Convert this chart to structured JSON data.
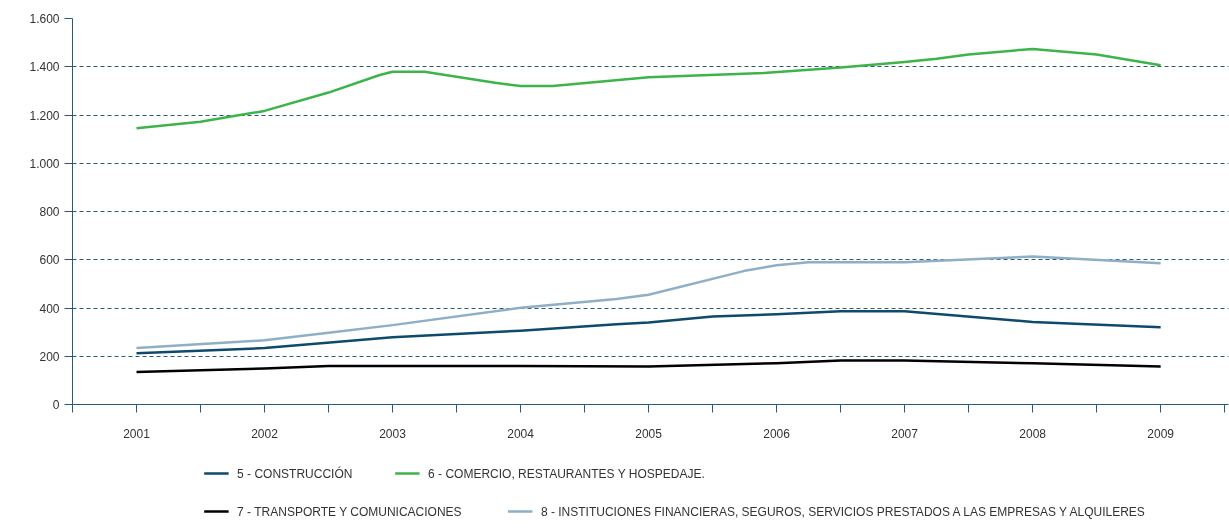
{
  "chart_data": {
    "type": "line",
    "xlim": [
      2000.5,
      2009.53
    ],
    "xticks": [
      {
        "value": 2001,
        "label": "2001"
      },
      {
        "value": 2002,
        "label": "2002"
      },
      {
        "value": 2003,
        "label": "2003"
      },
      {
        "value": 2004,
        "label": "2004"
      },
      {
        "value": 2005,
        "label": "2005"
      },
      {
        "value": 2006,
        "label": "2006"
      },
      {
        "value": 2007,
        "label": "2007"
      },
      {
        "value": 2008,
        "label": "2008"
      },
      {
        "value": 2009,
        "label": "2009"
      },
      {
        "value": 2000.5,
        "label": null
      },
      {
        "value": 2001.5,
        "label": null
      },
      {
        "value": 2002.5,
        "label": null
      },
      {
        "value": 2003.5,
        "label": null
      },
      {
        "value": 2004.5,
        "label": null
      },
      {
        "value": 2005.5,
        "label": null
      },
      {
        "value": 2006.5,
        "label": null
      },
      {
        "value": 2007.5,
        "label": null
      },
      {
        "value": 2008.5,
        "label": null
      },
      {
        "value": 2009.5,
        "label": null
      }
    ],
    "ylim": [
      0,
      1600
    ],
    "yticks": [
      0,
      {
        "value": 200,
        "label": "200"
      },
      {
        "value": 400,
        "label": "400"
      },
      {
        "value": 600,
        "label": "600"
      },
      {
        "value": 800,
        "label": "800"
      },
      {
        "value": 1000,
        "label": "1.000"
      },
      {
        "value": 1200,
        "label": "1.200"
      },
      {
        "value": 1400,
        "label": "1.400"
      },
      {
        "value": 1600,
        "label": "1.600"
      }
    ],
    "grid": "y",
    "legend": "bottom",
    "line_style": "solid",
    "series": [
      {
        "name": "5 - CONSTRUCCIÓN",
        "color": "#0d4a6b",
        "x": [
          2001,
          2002,
          2003,
          2004,
          2004.75,
          2005,
          2005.5,
          2006,
          2006.5,
          2007,
          2008,
          2009
        ],
        "values": [
          212,
          234,
          279,
          306,
          333,
          340,
          365,
          374,
          387,
          387,
          342,
          320
        ]
      },
      {
        "name": "6 - COMERCIO, RESTAURANTES Y HOSPEDAJE.",
        "color": "#3cb44a",
        "x": [
          2001,
          2001.5,
          2002,
          2002.5,
          2002.9,
          2003,
          2003.25,
          2003.8,
          2004,
          2004.25,
          2005,
          2005.9,
          2006.5,
          2007,
          2007.25,
          2007.5,
          2008,
          2008.5,
          2009
        ],
        "values": [
          1145,
          1172,
          1217,
          1293,
          1366,
          1379,
          1379,
          1334,
          1320,
          1320,
          1356,
          1374,
          1397,
          1420,
          1433,
          1451,
          1474,
          1451,
          1406
        ]
      },
      {
        "name": "7 - TRANSPORTE Y COMUNICACIONES",
        "color": "#000000",
        "x": [
          2001,
          2002,
          2002.5,
          2003,
          2004,
          2005,
          2006,
          2006.5,
          2007,
          2008,
          2009
        ],
        "values": [
          135,
          149,
          160,
          160,
          160,
          158,
          171,
          182,
          182,
          171,
          158
        ]
      },
      {
        "name": "8 - INSTITUCIONES FINANCIERAS, SEGUROS, SERVICIOS PRESTADOS A LAS EMPRESAS Y ALQUILERES",
        "color": "#8eafc6",
        "x": [
          2001,
          2002,
          2002.5,
          2003,
          2004,
          2004.75,
          2005,
          2005.75,
          2006,
          2006.25,
          2007,
          2008,
          2009
        ],
        "values": [
          234,
          266,
          297,
          329,
          401,
          437,
          455,
          554,
          577,
          590,
          590,
          613,
          586
        ]
      }
    ]
  }
}
